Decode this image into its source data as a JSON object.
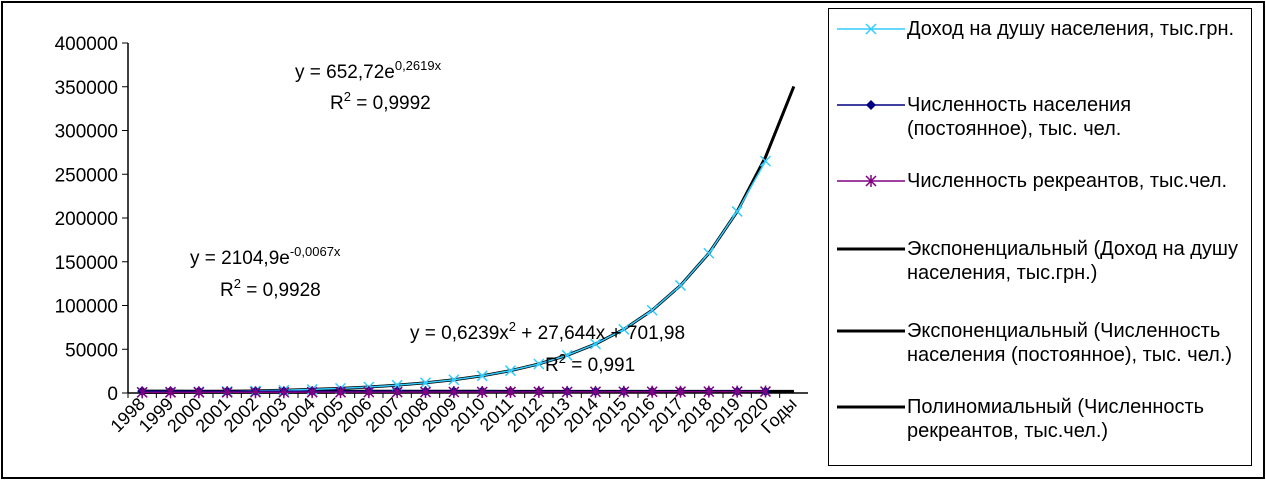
{
  "chart_data": {
    "type": "line",
    "categories": [
      "1998",
      "1999",
      "2000",
      "2001",
      "2002",
      "2003",
      "2004",
      "2005",
      "2006",
      "2007",
      "2008",
      "2009",
      "2010",
      "2011",
      "2012",
      "2013",
      "2014",
      "2015",
      "2016",
      "2017",
      "2018",
      "2019",
      "2020",
      "Годы"
    ],
    "ylim": [
      0,
      400000
    ],
    "yticks": [
      0,
      50000,
      100000,
      150000,
      200000,
      250000,
      300000,
      350000,
      400000
    ],
    "grid": false,
    "legend": "right",
    "series": [
      {
        "name": "Экспоненциальный (Доход на душу населения, тыс.грн.)",
        "color": "#000000",
        "marker": null,
        "values": [
          848,
          1102,
          1432,
          1861,
          2418,
          3142,
          4082,
          5304,
          6892,
          8956,
          11637,
          15121,
          19648,
          25530,
          33173,
          43105,
          56010,
          72779,
          94567,
          122880,
          159669,
          207473,
          269587,
          350293
        ]
      },
      {
        "name": "Экспоненциальный (Численность населения (постоянное), тыс. чел.)",
        "color": "#000000",
        "marker": null,
        "values": [
          2091,
          2077,
          2063,
          2049,
          2035,
          2022,
          2008,
          1995,
          1981,
          1968,
          1955,
          1942,
          1929,
          1916,
          1903,
          1890,
          1878,
          1865,
          1853,
          1840,
          1828,
          1816,
          1804,
          1792
        ]
      },
      {
        "name": "Полиномиальный (Численность рекреантов, тыс.чел.)",
        "color": "#000000",
        "marker": null,
        "values": [
          730,
          760,
          791,
          823,
          856,
          890,
          926,
          963,
          1001,
          1041,
          1082,
          1124,
          1167,
          1211,
          1257,
          1304,
          1352,
          1402,
          1452,
          1504,
          1558,
          1612,
          1668,
          1725
        ]
      },
      {
        "name": "Доход на душу населения, тыс.грн.",
        "color": "#33ccff",
        "marker": "x",
        "values": [
          850,
          1100,
          1430,
          1860,
          2420,
          3140,
          4080,
          5300,
          6890,
          8960,
          11640,
          15120,
          19650,
          25530,
          33170,
          43100,
          56000,
          72800,
          94600,
          122900,
          159700,
          207500,
          265000,
          null
        ]
      },
      {
        "name": "Численность населения (постоянное), тыс. чел.",
        "color": "#000080",
        "marker": "diamond",
        "values": [
          2090,
          2075,
          2062,
          2050,
          2035,
          2020,
          2005,
          1995,
          1980,
          1968,
          1955,
          1943,
          1930,
          1917,
          1905,
          1890,
          1878,
          1866,
          1853,
          1840,
          1828,
          1816,
          1804,
          null
        ]
      },
      {
        "name": "Численность рекреантов, тыс.чел.",
        "color": "#800080",
        "marker": "asterisk",
        "values": [
          730,
          760,
          790,
          820,
          860,
          890,
          930,
          960,
          1000,
          1040,
          1080,
          1120,
          1170,
          1210,
          1260,
          1300,
          1350,
          1400,
          1450,
          1500,
          1560,
          1610,
          1670,
          null
        ]
      }
    ],
    "legend_order": [
      3,
      4,
      5,
      0,
      1,
      2
    ],
    "annotations": [
      {
        "pre": "y = 652,72e",
        "sup": "0,2619x"
      },
      {
        "pre": "R",
        "sup": "2",
        "post": " = 0,9992"
      },
      {
        "pre": "y = 2104,9e",
        "sup": "-0,0067x"
      },
      {
        "pre": "R",
        "sup": "2",
        "post": " = 0,9928"
      },
      {
        "pre": "y = 0,6239x",
        "sup": "2",
        "post": " + 27,644x + 701,98"
      },
      {
        "pre": "R",
        "sup": "2",
        "post": " = 0,991"
      }
    ]
  }
}
